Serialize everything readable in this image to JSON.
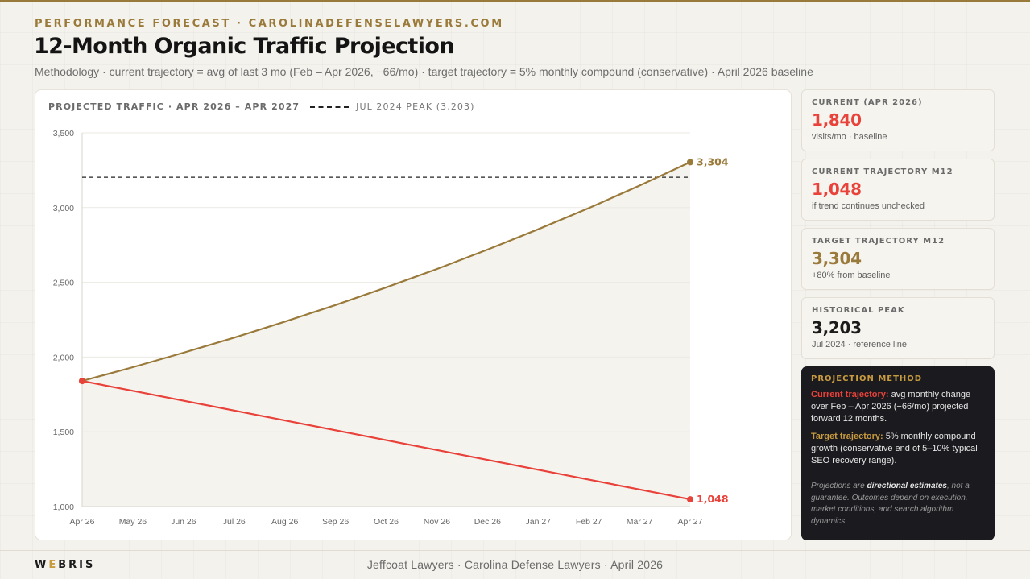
{
  "header": {
    "eyebrow": "PERFORMANCE FORECAST · CAROLINADEFENSELAWYERS.COM",
    "title": "12-Month Organic Traffic Projection",
    "subtitle": "Methodology · current trajectory = avg of last 3 mo (Feb – Apr 2026, −66/mo) · target trajectory = 5% monthly compound (conservative) · April 2026 baseline"
  },
  "chart_header": {
    "title": "PROJECTED TRAFFIC · APR 2026 – APR 2027",
    "legend_peak": "JUL 2024 PEAK (3,203)"
  },
  "colors": {
    "gold": "#9a7a3a",
    "red": "#e8423a",
    "dark": "#1b1a1f"
  },
  "chart_data": {
    "type": "line",
    "title": "PROJECTED TRAFFIC · APR 2026 – APR 2027",
    "xlabel": "",
    "ylabel": "",
    "categories": [
      "Apr 26",
      "May 26",
      "Jun 26",
      "Jul 26",
      "Aug 26",
      "Sep 26",
      "Oct 26",
      "Nov 26",
      "Dec 26",
      "Jan 27",
      "Feb 27",
      "Mar 27",
      "Apr 27"
    ],
    "ylim": [
      1000,
      3500
    ],
    "yticks": [
      1000,
      1500,
      2000,
      2500,
      3000,
      3500
    ],
    "ytick_labels": [
      "1,000",
      "1,500",
      "2,000",
      "2,500",
      "3,000",
      "3,500"
    ],
    "grid": true,
    "series": [
      {
        "key": "target",
        "color": "#9a7a3a",
        "filled": true,
        "values": [
          1840,
          1932,
          2029,
          2130,
          2237,
          2348,
          2466,
          2589,
          2719,
          2855,
          2997,
          3147,
          3304
        ],
        "end_label": "3,304"
      },
      {
        "key": "current",
        "color": "#e8423a",
        "filled": false,
        "values": [
          1840,
          1774,
          1708,
          1642,
          1576,
          1510,
          1444,
          1378,
          1312,
          1246,
          1180,
          1114,
          1048
        ],
        "end_label": "1,048"
      }
    ],
    "reference_line": {
      "value": 3203,
      "style": "dashed",
      "color": "#222222"
    }
  },
  "stats": [
    {
      "label": "CURRENT (APR 2026)",
      "value": "1,840",
      "note": "visits/mo · baseline",
      "color": "#e8423a"
    },
    {
      "label": "CURRENT TRAJECTORY M12",
      "value": "1,048",
      "note": "if trend continues unchecked",
      "color": "#e8423a"
    },
    {
      "label": "TARGET TRAJECTORY M12",
      "value": "3,304",
      "note": "+80% from baseline",
      "color": "#9a7a3a"
    },
    {
      "label": "HISTORICAL PEAK",
      "value": "3,203",
      "note": "Jul 2024 · reference line",
      "color": "#1b1b1b"
    }
  ],
  "method": {
    "title": "PROJECTION METHOD",
    "current_label": "Current trajectory:",
    "current_text": " avg monthly change over Feb – Apr 2026 (−66/mo) projected forward 12 months.",
    "target_label": "Target trajectory:",
    "target_text": " 5% monthly compound growth (conservative end of 5–10% typical SEO recovery range).",
    "foot_pre": "Projections are ",
    "foot_bold": "directional estimates",
    "foot_post": ", not a guarantee. Outcomes depend on execution, market conditions, and search algorithm dynamics."
  },
  "footer": {
    "brand_a": "W",
    "brand_b": "E",
    "brand_c": "BRIS",
    "text": "Jeffcoat Lawyers · Carolina Defense Lawyers · April 2026"
  }
}
